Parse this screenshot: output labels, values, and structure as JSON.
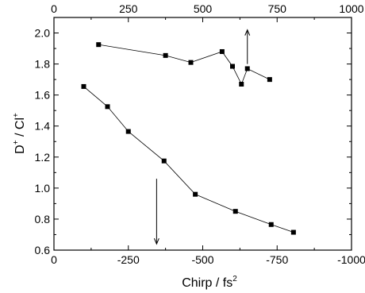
{
  "chart_data": {
    "type": "scatter",
    "x_bottom": {
      "label_main": "Chirp / fs",
      "label_sup": "2",
      "lim": [
        0,
        -1000
      ],
      "ticks": [
        0,
        -250,
        -500,
        -750,
        -1000
      ],
      "tick_labels": [
        "0",
        "-250",
        "-500",
        "-750",
        "-1000"
      ]
    },
    "x_top": {
      "lim": [
        0,
        1000
      ],
      "ticks": [
        0,
        250,
        500,
        750,
        1000
      ],
      "tick_labels": [
        "0",
        "250",
        "500",
        "750",
        "1000"
      ]
    },
    "y": {
      "label_parts": [
        "D",
        "+",
        " / Cl",
        "+"
      ],
      "lim": [
        0.6,
        2.1
      ],
      "ticks": [
        0.6,
        0.8,
        1.0,
        1.2,
        1.4,
        1.6,
        1.8,
        2.0
      ],
      "tick_labels": [
        "0.6",
        "0.8",
        "1.0",
        "1.2",
        "1.4",
        "1.6",
        "1.8",
        "2.0"
      ]
    },
    "grid": false,
    "legend": "none",
    "series": [
      {
        "axis": "top",
        "x": [
          150,
          375,
          460,
          565,
          600,
          630,
          650,
          725
        ],
        "y": [
          1.925,
          1.855,
          1.81,
          1.88,
          1.785,
          1.67,
          1.77,
          1.7
        ]
      },
      {
        "axis": "bottom",
        "x": [
          -100,
          -180,
          -250,
          -370,
          -475,
          -610,
          -730,
          -805
        ],
        "y": [
          1.655,
          1.525,
          1.365,
          1.175,
          0.96,
          0.85,
          0.765,
          0.715
        ]
      }
    ],
    "annotations": [
      {
        "type": "arrow",
        "axis": "top",
        "direction": "up",
        "x": 650,
        "y_from": 1.8,
        "y_to": 2.02
      },
      {
        "type": "arrow",
        "axis": "bottom",
        "direction": "down",
        "x": -345,
        "y_from": 1.06,
        "y_to": 0.64
      }
    ],
    "colors": {
      "marker": "#000000",
      "line": "#000000",
      "axes": "#000000"
    }
  }
}
